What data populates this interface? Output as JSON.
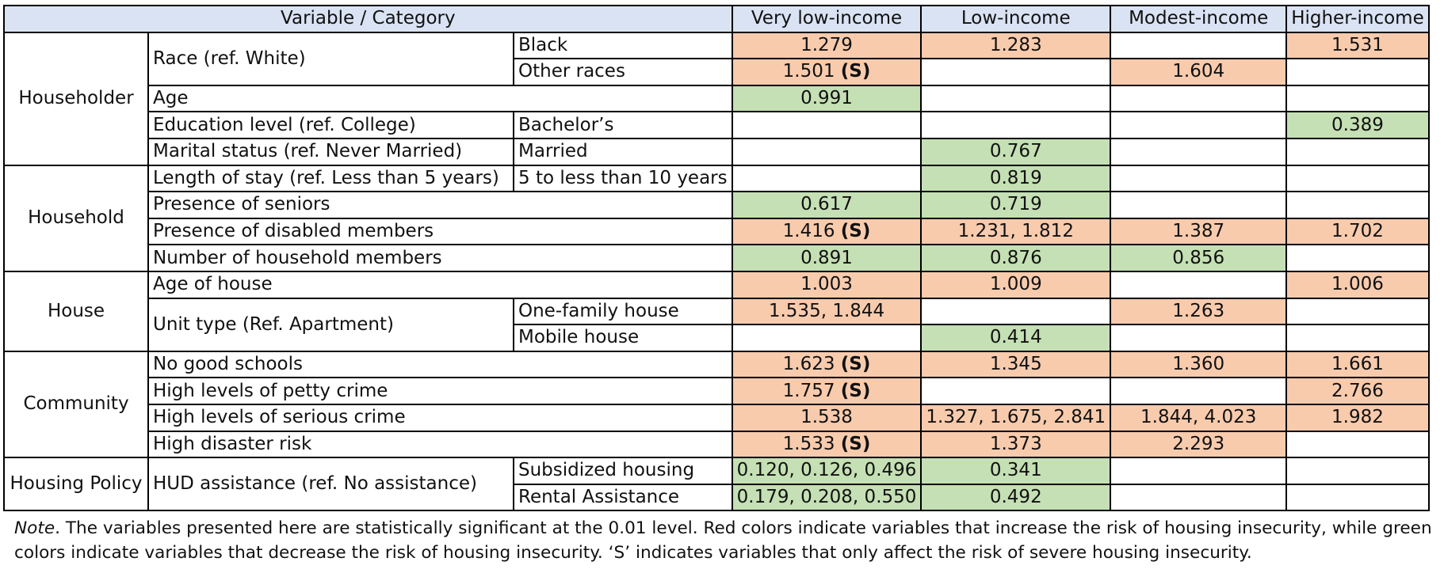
{
  "table": {
    "headers": [
      "Variable / Category",
      "Very low-income",
      "Low-income",
      "Modest-income",
      "Higher-income"
    ],
    "groups": [
      {
        "name": "Householder",
        "rows": [
          {
            "variable": "Race (ref. White)",
            "category": "Black",
            "cells": [
              {
                "value": "1.279",
                "effect": "increase"
              },
              {
                "value": "1.283",
                "effect": "increase"
              },
              {
                "value": "",
                "effect": "none"
              },
              {
                "value": "1.531",
                "effect": "increase"
              }
            ]
          },
          {
            "variable": "",
            "category": "Other races",
            "cells": [
              {
                "value": "1.501",
                "severe": "(S)",
                "effect": "increase"
              },
              {
                "value": "",
                "effect": "none"
              },
              {
                "value": "1.604",
                "effect": "increase"
              },
              {
                "value": "",
                "effect": "none"
              }
            ]
          },
          {
            "variable": "Age",
            "category": null,
            "cells": [
              {
                "value": "0.991",
                "effect": "decrease"
              },
              {
                "value": "",
                "effect": "none"
              },
              {
                "value": "",
                "effect": "none"
              },
              {
                "value": "",
                "effect": "none"
              }
            ]
          },
          {
            "variable": "Education level (ref. College)",
            "category": "Bachelor’s",
            "cells": [
              {
                "value": "",
                "effect": "none"
              },
              {
                "value": "",
                "effect": "none"
              },
              {
                "value": "",
                "effect": "none"
              },
              {
                "value": "0.389",
                "effect": "decrease"
              }
            ]
          },
          {
            "variable": "Marital status (ref. Never Married)",
            "category": "Married",
            "cells": [
              {
                "value": "",
                "effect": "none"
              },
              {
                "value": "0.767",
                "effect": "decrease"
              },
              {
                "value": "",
                "effect": "none"
              },
              {
                "value": "",
                "effect": "none"
              }
            ]
          }
        ]
      },
      {
        "name": "Household",
        "rows": [
          {
            "variable": "Length of stay (ref. Less than 5 years)",
            "category": "5 to less than 10 years",
            "cells": [
              {
                "value": "",
                "effect": "none"
              },
              {
                "value": "0.819",
                "effect": "decrease"
              },
              {
                "value": "",
                "effect": "none"
              },
              {
                "value": "",
                "effect": "none"
              }
            ]
          },
          {
            "variable": "Presence of seniors",
            "category": null,
            "cells": [
              {
                "value": "0.617",
                "effect": "decrease"
              },
              {
                "value": "0.719",
                "effect": "decrease"
              },
              {
                "value": "",
                "effect": "none"
              },
              {
                "value": "",
                "effect": "none"
              }
            ]
          },
          {
            "variable": "Presence of disabled members",
            "category": null,
            "cells": [
              {
                "value": "1.416",
                "severe": "(S)",
                "effect": "increase"
              },
              {
                "value": "1.231, 1.812",
                "effect": "increase"
              },
              {
                "value": "1.387",
                "effect": "increase"
              },
              {
                "value": "1.702",
                "effect": "increase"
              }
            ]
          },
          {
            "variable": "Number of household members",
            "category": null,
            "cells": [
              {
                "value": "0.891",
                "effect": "decrease"
              },
              {
                "value": "0.876",
                "effect": "decrease"
              },
              {
                "value": "0.856",
                "effect": "decrease"
              },
              {
                "value": "",
                "effect": "none"
              }
            ]
          }
        ]
      },
      {
        "name": "House",
        "rows": [
          {
            "variable": "Age of house",
            "category": null,
            "cells": [
              {
                "value": "1.003",
                "effect": "increase"
              },
              {
                "value": "1.009",
                "effect": "increase"
              },
              {
                "value": "",
                "effect": "none"
              },
              {
                "value": "1.006",
                "effect": "increase"
              }
            ]
          },
          {
            "variable": "Unit type (Ref. Apartment)",
            "category": "One-family house",
            "cells": [
              {
                "value": "1.535, 1.844",
                "effect": "increase"
              },
              {
                "value": "",
                "effect": "none"
              },
              {
                "value": "1.263",
                "effect": "increase"
              },
              {
                "value": "",
                "effect": "none"
              }
            ]
          },
          {
            "variable": "",
            "category": "Mobile house",
            "cells": [
              {
                "value": "",
                "effect": "none"
              },
              {
                "value": "0.414",
                "effect": "decrease"
              },
              {
                "value": "",
                "effect": "none"
              },
              {
                "value": "",
                "effect": "none"
              }
            ]
          }
        ]
      },
      {
        "name": "Community",
        "rows": [
          {
            "variable": "No good schools",
            "category": null,
            "cells": [
              {
                "value": "1.623",
                "severe": "(S)",
                "effect": "increase"
              },
              {
                "value": "1.345",
                "effect": "increase"
              },
              {
                "value": "1.360",
                "effect": "increase"
              },
              {
                "value": "1.661",
                "effect": "increase"
              }
            ]
          },
          {
            "variable": "High levels of petty crime",
            "category": null,
            "cells": [
              {
                "value": "1.757",
                "severe": "(S)",
                "effect": "increase"
              },
              {
                "value": "",
                "effect": "none"
              },
              {
                "value": "",
                "effect": "none"
              },
              {
                "value": "2.766",
                "effect": "increase"
              }
            ]
          },
          {
            "variable": "High levels of serious crime",
            "category": null,
            "cells": [
              {
                "value": "1.538",
                "effect": "increase"
              },
              {
                "value": "1.327, 1.675, 2.841",
                "effect": "increase"
              },
              {
                "value": "1.844, 4.023",
                "effect": "increase"
              },
              {
                "value": "1.982",
                "effect": "increase"
              }
            ]
          },
          {
            "variable": "High disaster risk",
            "category": null,
            "cells": [
              {
                "value": "1.533",
                "severe": "(S)",
                "effect": "increase"
              },
              {
                "value": "1.373",
                "effect": "increase"
              },
              {
                "value": "2.293",
                "effect": "increase"
              },
              {
                "value": "",
                "effect": "none"
              }
            ]
          }
        ]
      },
      {
        "name": "Housing Policy",
        "rows": [
          {
            "variable": "HUD assistance (ref. No assistance)",
            "category": "Subsidized housing",
            "cells": [
              {
                "value": "0.120, 0.126, 0.496",
                "effect": "decrease"
              },
              {
                "value": "0.341",
                "effect": "decrease"
              },
              {
                "value": "",
                "effect": "none"
              },
              {
                "value": "",
                "effect": "none"
              }
            ]
          },
          {
            "variable": "",
            "category": "Rental Assistance",
            "cells": [
              {
                "value": "0.179, 0.208, 0.550",
                "effect": "decrease"
              },
              {
                "value": "0.492",
                "effect": "decrease"
              },
              {
                "value": "",
                "effect": "none"
              },
              {
                "value": "",
                "effect": "none"
              }
            ]
          }
        ]
      }
    ]
  },
  "note": {
    "label": "Note",
    "text": ". The variables presented here are statistically significant at the 0.01 level. Red colors indicate variables that increase the risk of housing insecurity, while green colors indicate variables that decrease the risk of housing insecurity. ‘S’ indicates variables that only affect the risk of severe housing insecurity."
  },
  "colors": {
    "header_bg": "#dae3f3",
    "increase": "#f8cbad",
    "decrease": "#c5e0b4"
  }
}
